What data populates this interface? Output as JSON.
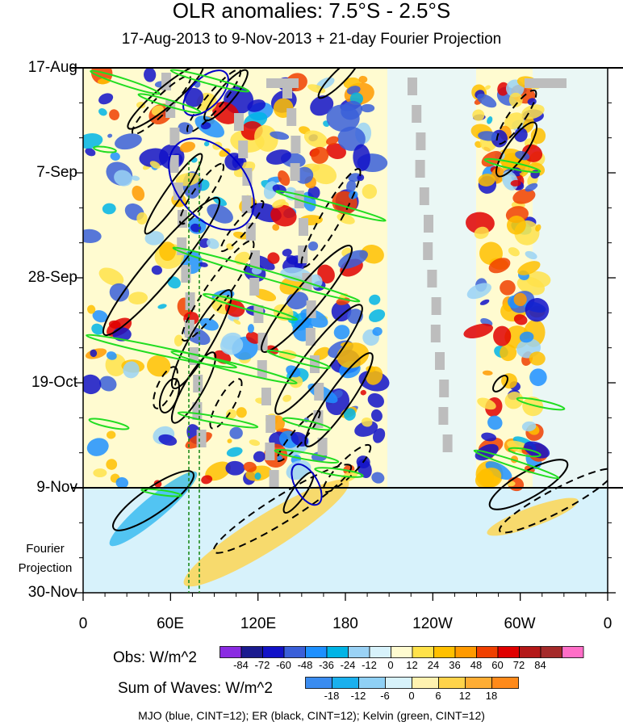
{
  "title": "OLR anomalies: 7.5°S - 2.5°S",
  "subtitle": "17-Aug-2013 to 9-Nov-2013 + 21-day Fourier Projection",
  "chart_data": {
    "type": "heatmap",
    "title": "OLR anomalies: 7.5°S - 2.5°S",
    "subtitle": "17-Aug-2013 to 9-Nov-2013 + 21-day Fourier Projection",
    "x_axis": {
      "ticks": [
        "0",
        "60E",
        "120E",
        "180",
        "120W",
        "60W",
        "0"
      ],
      "range_deg": [
        0,
        360
      ]
    },
    "y_axis": {
      "ticks": [
        "17-Aug",
        "7-Sep",
        "28-Sep",
        "19-Oct",
        "9-Nov",
        "30-Nov"
      ],
      "reversed": true
    },
    "observed_end": "9-Nov",
    "projection_label": [
      "Fourier",
      "Projection"
    ],
    "colorbars": [
      {
        "title": "Obs: W/m^2",
        "levels": [
          -84,
          -72,
          -60,
          -48,
          -36,
          -24,
          -12,
          0,
          12,
          24,
          36,
          48,
          60,
          72,
          84
        ],
        "colors": [
          "#8a2be2",
          "#1b1b8f",
          "#1212c8",
          "#3a5fd9",
          "#1e90ff",
          "#00b4e6",
          "#9ad2f5",
          "#d7f2fb",
          "#fffbd0",
          "#ffe24a",
          "#ffc000",
          "#ff9a00",
          "#f04000",
          "#e00000",
          "#b41818",
          "#a52a2a",
          "#ff6ec7"
        ]
      },
      {
        "title": "Sum of Waves: W/m^2",
        "levels": [
          -18,
          -12,
          -6,
          0,
          6,
          12,
          18
        ],
        "colors": [
          "#3a8cf0",
          "#1ab0ee",
          "#8fd0f5",
          "#d7f2fb",
          "#fff2b0",
          "#ffd34a",
          "#ffad33",
          "#ff8a1a"
        ]
      }
    ],
    "contour_series": [
      {
        "name": "MJO",
        "color": "#0000c8",
        "cint": 12
      },
      {
        "name": "ER",
        "color": "#000000",
        "cint": 12
      },
      {
        "name": "Kelvin",
        "color": "#22dd22",
        "cint": 12
      }
    ],
    "footer": "MJO (blue, CINT=12); ER (black, CINT=12); Kelvin (green, CINT=12)"
  }
}
